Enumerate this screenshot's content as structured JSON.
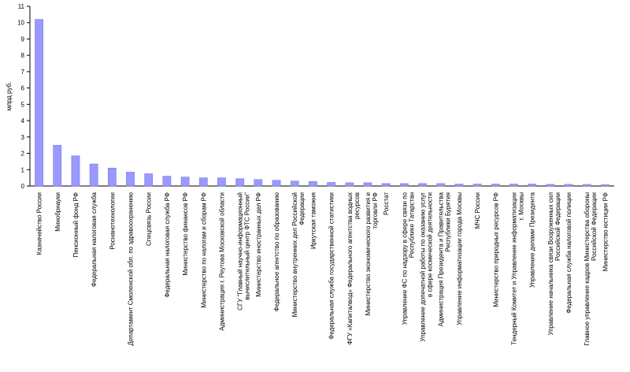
{
  "chart_data": {
    "type": "bar",
    "y_label": "млрд руб.",
    "categories": [
      "Казначейство России",
      "Минобрнауки",
      "Пенсионный фонд РФ",
      "Федеральная налоговая служба",
      "Роснанотехнологии",
      "Департамент Смоленской обл. по здравоохранению",
      "Спецсвязь России",
      "Федеральная налоговая служба РФ",
      "Министерство финансов РФ",
      "Министерство по налогам и сборам РФ",
      "Администрация г. Реутова Московской области",
      "СГУ \"Главный научно-информационный вычислительный центр ФТС России\"",
      "Министерство иностранных дел РФ",
      "Федеральное агентство по образованию",
      "Министерство внутренних дел Российской Федерации",
      "Иркутская таможня",
      "Федеральная служба государственной статистики",
      "ФГУ «Капиталвод» Федерального агентства водных ресурсов",
      "Министерство экономического развития и торговли РФ",
      "Росстат",
      "Управление ФС по надзору в сфере связи по Республике Татарстан",
      "Управление допечатной работы по оказанию услуг в сфере космической деятельности",
      "Администрация Президента и Правительства Республики Бурятия",
      "Управление информатизации города Москвы",
      "МЧС России",
      "Министерство природных ресурсов РФ",
      "Тендерный Комитет и Управление информатизации г. Москвы",
      "Управление делами Президента",
      "Управление начальника связи Вооруженных сил Российской Федерации",
      "Федеральная служба налоговой полиции",
      "Главное управление кадров Министерства обороны Российской Федерации",
      "Министерство юстиции РФ"
    ],
    "values": [
      10.2,
      2.5,
      1.85,
      1.35,
      1.1,
      0.85,
      0.75,
      0.6,
      0.55,
      0.5,
      0.5,
      0.45,
      0.4,
      0.35,
      0.3,
      0.28,
      0.22,
      0.2,
      0.2,
      0.15,
      0.15,
      0.15,
      0.15,
      0.12,
      0.12,
      0.12,
      0.12,
      0.12,
      0.1,
      0.1,
      0.1,
      0.08
    ],
    "color": "#9999ff",
    "ylim": [
      0,
      11
    ],
    "yticks": [
      0,
      1,
      2,
      3,
      4,
      5,
      6,
      7,
      8,
      9,
      10,
      11
    ],
    "grid": false
  }
}
